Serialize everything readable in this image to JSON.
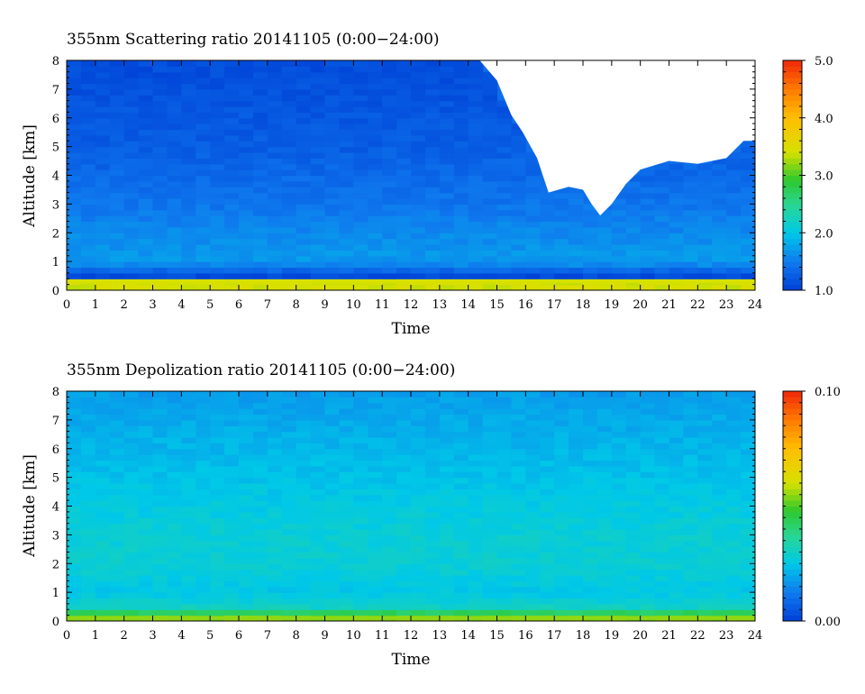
{
  "chart_data": [
    {
      "type": "heatmap",
      "title": "355nm Scattering ratio  20141105 (0:00−24:00)",
      "xlabel": "Time",
      "ylabel": "Altitude [km]",
      "x_ticks": [
        "0",
        "1",
        "2",
        "3",
        "4",
        "5",
        "6",
        "7",
        "8",
        "9",
        "10",
        "11",
        "12",
        "13",
        "14",
        "15",
        "16",
        "17",
        "18",
        "19",
        "20",
        "21",
        "22",
        "23",
        "24"
      ],
      "y_ticks": [
        "0",
        "1",
        "2",
        "3",
        "4",
        "5",
        "6",
        "7",
        "8"
      ],
      "xlim": [
        0,
        24
      ],
      "ylim": [
        0,
        8
      ],
      "colorbar": {
        "min": 1.0,
        "max": 5.0,
        "tick_labels": [
          "5.0",
          "4.0",
          "3.0",
          "2.0",
          "1.0"
        ],
        "tick_values": [
          5.0,
          4.0,
          3.0,
          2.0,
          1.0
        ]
      },
      "no_data_color": "#ffffff",
      "no_data_boundary": {
        "time_h": [
          0,
          14.4,
          15.0,
          15.5,
          15.9,
          16.4,
          16.8,
          17.5,
          18.0,
          18.3,
          18.6,
          19.0,
          19.5,
          20.0,
          21.0,
          22.0,
          23.0,
          23.6,
          24.0
        ],
        "altitude_km": [
          8.0,
          8.0,
          7.3,
          6.1,
          5.5,
          4.6,
          3.4,
          3.6,
          3.5,
          3.0,
          2.6,
          3.0,
          3.7,
          4.2,
          4.5,
          4.4,
          4.6,
          5.2,
          5.2
        ]
      },
      "typical_values": [
        {
          "altitude_km": 0.3,
          "ratio": 3.4
        },
        {
          "altitude_km": 0.5,
          "ratio": 1.1
        },
        {
          "altitude_km": 1.0,
          "ratio": 1.7
        },
        {
          "altitude_km": 2.0,
          "ratio": 1.6
        },
        {
          "altitude_km": 3.0,
          "ratio": 1.45
        },
        {
          "altitude_km": 4.0,
          "ratio": 1.35
        },
        {
          "altitude_km": 5.0,
          "ratio": 1.25
        },
        {
          "altitude_km": 6.0,
          "ratio": 1.2
        },
        {
          "altitude_km": 7.0,
          "ratio": 1.15
        },
        {
          "altitude_km": 8.0,
          "ratio": 1.1
        }
      ]
    },
    {
      "type": "heatmap",
      "title": "355nm Depolization ratio  20141105 (0:00−24:00)",
      "xlabel": "Time",
      "ylabel": "Altitude [km]",
      "x_ticks": [
        "0",
        "1",
        "2",
        "3",
        "4",
        "5",
        "6",
        "7",
        "8",
        "9",
        "10",
        "11",
        "12",
        "13",
        "14",
        "15",
        "16",
        "17",
        "18",
        "19",
        "20",
        "21",
        "22",
        "23",
        "24"
      ],
      "y_ticks": [
        "0",
        "1",
        "2",
        "3",
        "4",
        "5",
        "6",
        "7",
        "8"
      ],
      "xlim": [
        0,
        24
      ],
      "ylim": [
        0,
        8
      ],
      "colorbar": {
        "min": 0.0,
        "max": 0.1,
        "tick_labels": [
          "0.10",
          "0.00"
        ],
        "tick_values": [
          0.1,
          0.0
        ]
      },
      "typical_values": [
        {
          "altitude_km": 0.1,
          "ratio": 0.055
        },
        {
          "altitude_km": 0.5,
          "ratio": 0.03
        },
        {
          "altitude_km": 1.0,
          "ratio": 0.025
        },
        {
          "altitude_km": 2.0,
          "ratio": 0.028
        },
        {
          "altitude_km": 3.0,
          "ratio": 0.028
        },
        {
          "altitude_km": 4.0,
          "ratio": 0.026
        },
        {
          "altitude_km": 5.0,
          "ratio": 0.024
        },
        {
          "altitude_km": 6.0,
          "ratio": 0.022
        },
        {
          "altitude_km": 7.0,
          "ratio": 0.02
        },
        {
          "altitude_km": 8.0,
          "ratio": 0.018
        }
      ]
    }
  ]
}
